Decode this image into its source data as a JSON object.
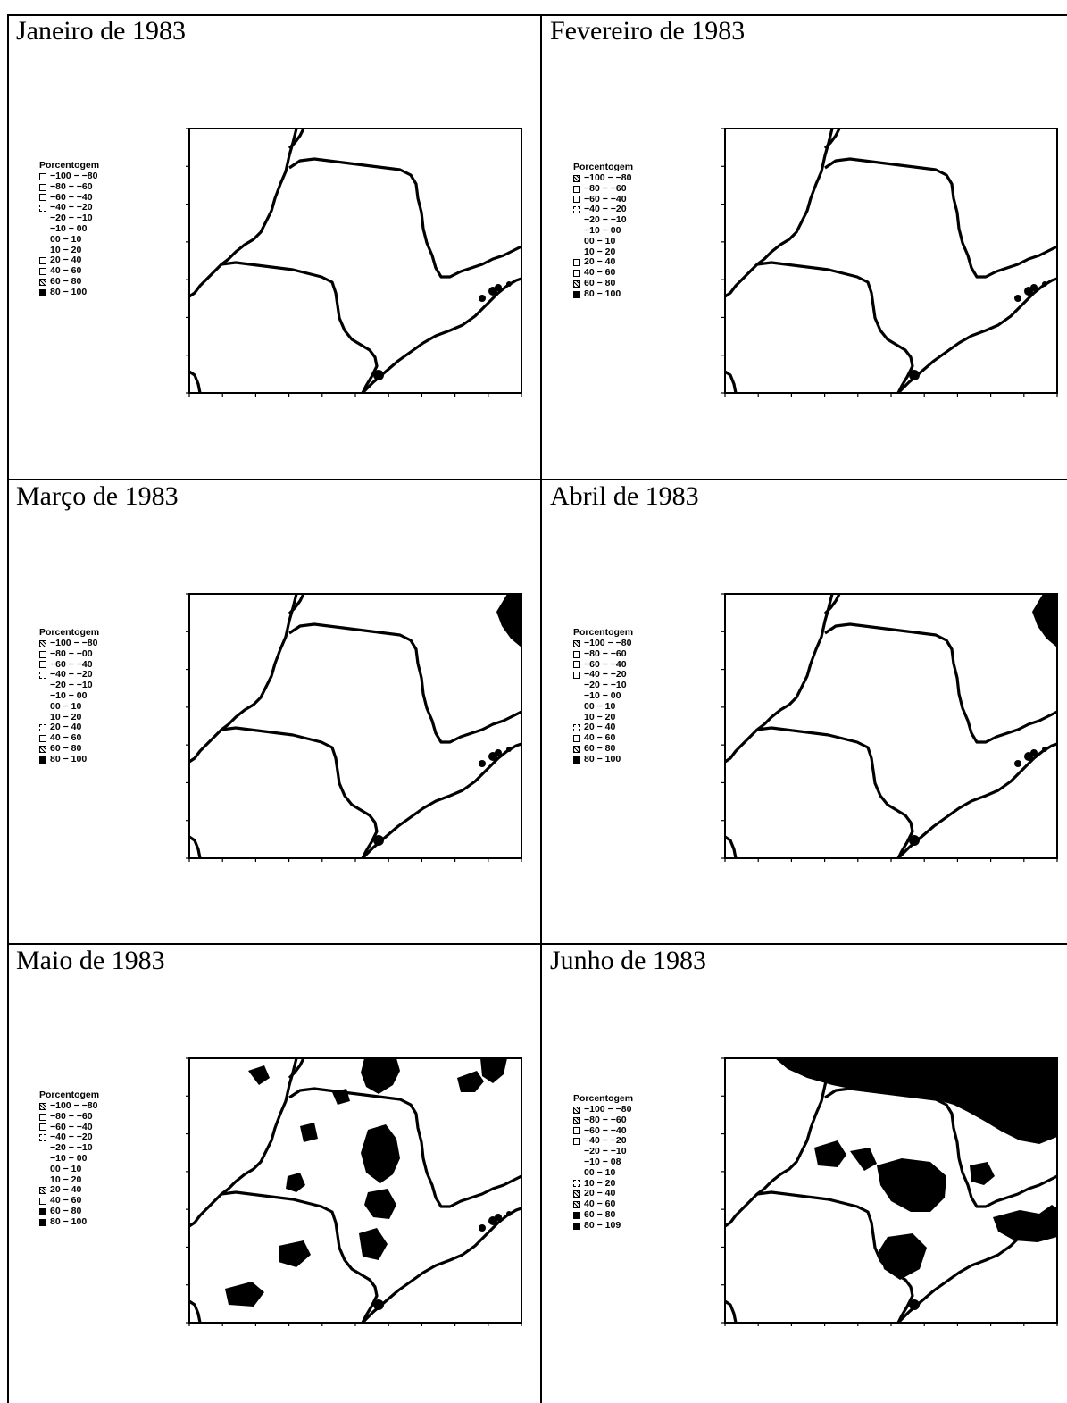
{
  "panels": [
    {
      "title": "Janeiro de 1983",
      "legend_title": "Porcentogem",
      "legend": [
        {
          "label": "−100 − −80",
          "swatch": "empty"
        },
        {
          "label": "−80 − −60",
          "swatch": "empty"
        },
        {
          "label": "−60 − −40",
          "swatch": "empty"
        },
        {
          "label": "−40 − −20",
          "swatch": "dashed"
        },
        {
          "label": "−20 − −10",
          "swatch": "none"
        },
        {
          "label": "−10 − 00",
          "swatch": "none"
        },
        {
          "label": "00 − 10",
          "swatch": "none"
        },
        {
          "label": "10 − 20",
          "swatch": "none"
        },
        {
          "label": "20 − 40",
          "swatch": "empty"
        },
        {
          "label": "40 − 60",
          "swatch": "empty"
        },
        {
          "label": "60 − 80",
          "swatch": "hatch"
        },
        {
          "label": "80 − 100",
          "swatch": "solid"
        }
      ],
      "pattern": "clear"
    },
    {
      "title": "Fevereiro de 1983",
      "legend_title": "Porcentogem",
      "legend": [
        {
          "label": "−100 − −80",
          "swatch": "hatch"
        },
        {
          "label": "−80 − −60",
          "swatch": "empty"
        },
        {
          "label": "−60 − −40",
          "swatch": "empty"
        },
        {
          "label": "−40 − −20",
          "swatch": "dashed"
        },
        {
          "label": "−20 − −10",
          "swatch": "none"
        },
        {
          "label": "−10 − 00",
          "swatch": "none"
        },
        {
          "label": "00 − 10",
          "swatch": "none"
        },
        {
          "label": "10 − 20",
          "swatch": "none"
        },
        {
          "label": "20 − 40",
          "swatch": "empty"
        },
        {
          "label": "40 − 60",
          "swatch": "empty"
        },
        {
          "label": "60 − 80",
          "swatch": "hatch"
        },
        {
          "label": "80 − 100",
          "swatch": "solid"
        }
      ],
      "pattern": "clear"
    },
    {
      "title": "Março de 1983",
      "legend_title": "Porcentogem",
      "legend": [
        {
          "label": "−100 − −80",
          "swatch": "hatch"
        },
        {
          "label": "−80 − −00",
          "swatch": "empty"
        },
        {
          "label": "−60 − −40",
          "swatch": "empty"
        },
        {
          "label": "−40 − −20",
          "swatch": "dashed"
        },
        {
          "label": "−20 − −10",
          "swatch": "none"
        },
        {
          "label": "−10 − 00",
          "swatch": "none"
        },
        {
          "label": "00 − 10",
          "swatch": "none"
        },
        {
          "label": "10 − 20",
          "swatch": "none"
        },
        {
          "label": "20 − 40",
          "swatch": "dashed"
        },
        {
          "label": "40 − 60",
          "swatch": "empty"
        },
        {
          "label": "60 − 80",
          "swatch": "hatch"
        },
        {
          "label": "80 − 100",
          "swatch": "solid"
        }
      ],
      "pattern": "corner"
    },
    {
      "title": "Abril de 1983",
      "legend_title": "Porcentogem",
      "legend": [
        {
          "label": "−100 − −80",
          "swatch": "hatch"
        },
        {
          "label": "−80 − −60",
          "swatch": "empty"
        },
        {
          "label": "−60 − −40",
          "swatch": "empty"
        },
        {
          "label": "−40 − −20",
          "swatch": "empty"
        },
        {
          "label": "−20 − −10",
          "swatch": "none"
        },
        {
          "label": "−10 − 00",
          "swatch": "none"
        },
        {
          "label": "00 − 10",
          "swatch": "none"
        },
        {
          "label": "10 − 20",
          "swatch": "none"
        },
        {
          "label": "20 − 40",
          "swatch": "dashed"
        },
        {
          "label": "40 − 60",
          "swatch": "empty"
        },
        {
          "label": "60 − 80",
          "swatch": "hatch"
        },
        {
          "label": "80 − 100",
          "swatch": "solid"
        }
      ],
      "pattern": "corner"
    },
    {
      "title": "Maio de 1983",
      "legend_title": "Porcentogem",
      "legend": [
        {
          "label": "−100 − −80",
          "swatch": "hatch"
        },
        {
          "label": "−80 − −60",
          "swatch": "empty"
        },
        {
          "label": "−60 − −40",
          "swatch": "empty"
        },
        {
          "label": "−40 − −20",
          "swatch": "dashed"
        },
        {
          "label": "−20 − −10",
          "swatch": "none"
        },
        {
          "label": "−10 − 00",
          "swatch": "none"
        },
        {
          "label": "00 − 10",
          "swatch": "none"
        },
        {
          "label": "10 − 20",
          "swatch": "none"
        },
        {
          "label": "20 − 40",
          "swatch": "hatch"
        },
        {
          "label": "40 − 60",
          "swatch": "empty"
        },
        {
          "label": "60 − 80",
          "swatch": "solid"
        },
        {
          "label": "80 − 100",
          "swatch": "solid"
        }
      ],
      "pattern": "patchy"
    },
    {
      "title": "Junho de 1983",
      "legend_title": "Porcentogem",
      "legend": [
        {
          "label": "−100 − −80",
          "swatch": "hatch"
        },
        {
          "label": "−80 − −60",
          "swatch": "hatch"
        },
        {
          "label": "−60 − −40",
          "swatch": "empty"
        },
        {
          "label": "−40 − −20",
          "swatch": "empty"
        },
        {
          "label": "−20 − −10",
          "swatch": "none"
        },
        {
          "label": "−10 − 08",
          "swatch": "none"
        },
        {
          "label": "00 − 10",
          "swatch": "none"
        },
        {
          "label": "10 − 20",
          "swatch": "dashed"
        },
        {
          "label": "20 − 40",
          "swatch": "hatch"
        },
        {
          "label": "40 − 60",
          "swatch": "hatch"
        },
        {
          "label": "60 − 80",
          "swatch": "solid"
        },
        {
          "label": "80 − 109",
          "swatch": "solid"
        }
      ],
      "pattern": "dense"
    }
  ]
}
